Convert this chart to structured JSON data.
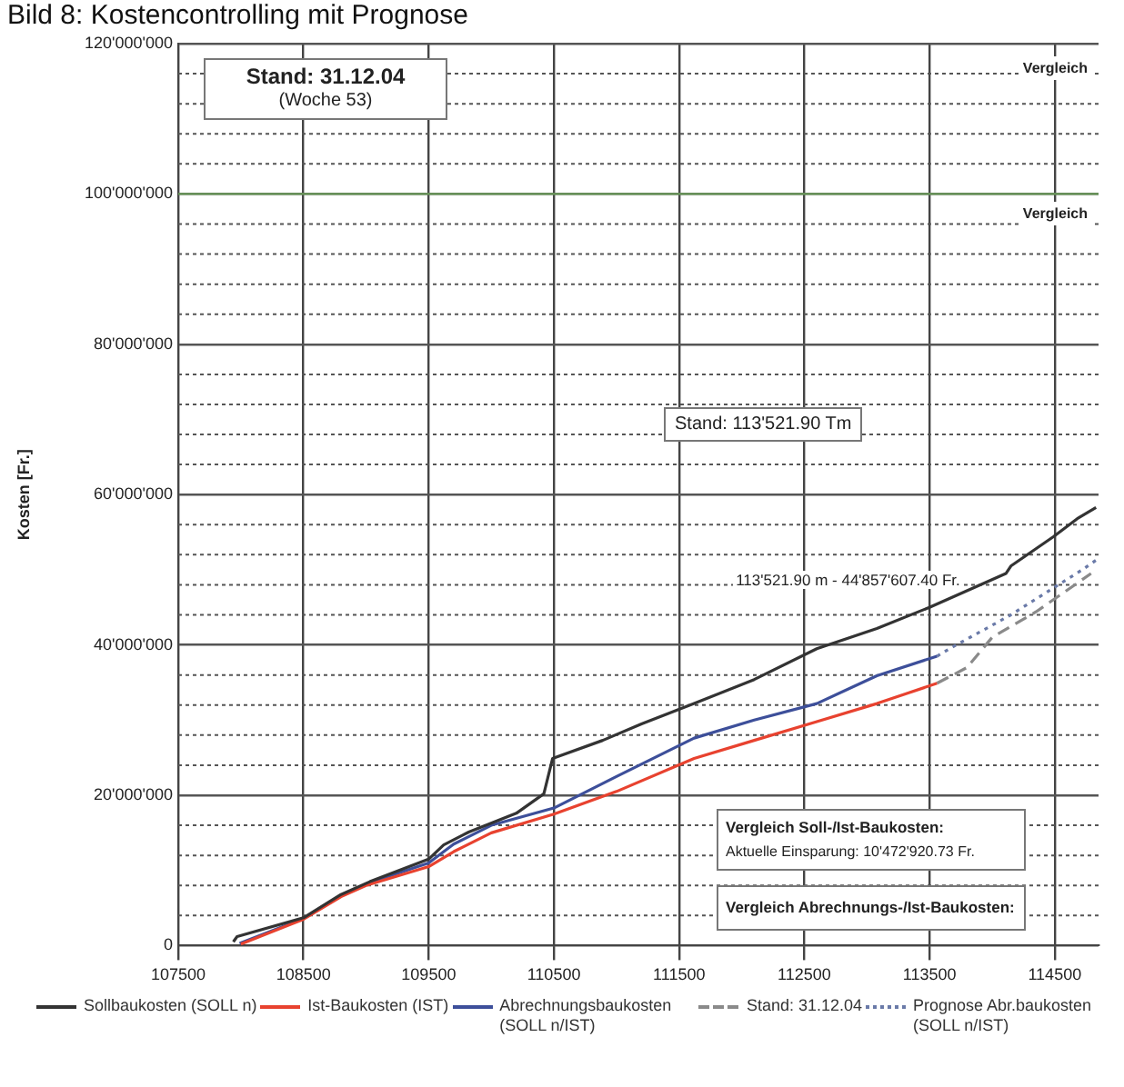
{
  "chart_data": {
    "type": "line",
    "title": "Bild 8: Kostencontrolling mit Prognose",
    "ylabel": "Kosten [Fr.]",
    "xlim": [
      107500,
      114850
    ],
    "xticks": [
      107500,
      108500,
      109500,
      110500,
      111500,
      112500,
      113500,
      114500
    ],
    "ylim": [
      0,
      120000000
    ],
    "yticks": [
      {
        "value": 0,
        "label": "0"
      },
      {
        "value": 4000000,
        "label": null
      },
      {
        "value": 8000000,
        "label": null
      },
      {
        "value": 12000000,
        "label": null
      },
      {
        "value": 16000000,
        "label": null
      },
      {
        "value": 20000000,
        "label": "20'000'000"
      },
      {
        "value": 24000000,
        "label": null
      },
      {
        "value": 28000000,
        "label": null
      },
      {
        "value": 32000000,
        "label": null
      },
      {
        "value": 36000000,
        "label": null
      },
      {
        "value": 40000000,
        "label": "40'000'000"
      },
      {
        "value": 44000000,
        "label": null
      },
      {
        "value": 48000000,
        "label": null
      },
      {
        "value": 52000000,
        "label": null
      },
      {
        "value": 56000000,
        "label": null
      },
      {
        "value": 60000000,
        "label": "60'000'000"
      },
      {
        "value": 64000000,
        "label": null
      },
      {
        "value": 68000000,
        "label": null
      },
      {
        "value": 72000000,
        "label": null
      },
      {
        "value": 76000000,
        "label": null
      },
      {
        "value": 80000000,
        "label": "80'000'000"
      },
      {
        "value": 84000000,
        "label": null
      },
      {
        "value": 88000000,
        "label": null
      },
      {
        "value": 92000000,
        "label": null
      },
      {
        "value": 96000000,
        "label": null
      },
      {
        "value": 100000000,
        "label": "100'000'000"
      },
      {
        "value": 104000000,
        "label": null
      },
      {
        "value": 108000000,
        "label": null
      },
      {
        "value": 112000000,
        "label": null
      },
      {
        "value": 116000000,
        "label": null
      },
      {
        "value": 120000000,
        "label": "120'000'000"
      }
    ],
    "grid": true,
    "legend": "bottom",
    "marker": "none",
    "series": [
      {
        "name": "Sollbaukosten (SOLL n)",
        "color": "#333333",
        "line_style": "solid",
        "x": [
          107940,
          107970,
          108500,
          108800,
          109030,
          109500,
          109620,
          109820,
          110200,
          110420,
          110490,
          110890,
          111200,
          111620,
          112100,
          112600,
          113080,
          113500,
          114110,
          114150,
          114490,
          114680,
          114830
        ],
        "values": [
          500000,
          1200000,
          3700000,
          6800000,
          8500000,
          11500000,
          13400000,
          15100000,
          17600000,
          20200000,
          24900000,
          27300000,
          29500000,
          32200000,
          35400000,
          39500000,
          42200000,
          45000000,
          49500000,
          50500000,
          54400000,
          56800000,
          58300000
        ]
      },
      {
        "name": "Ist-Baukosten (IST)",
        "color": "#e8422f",
        "line_style": "solid",
        "x": [
          108000,
          108500,
          108800,
          109000,
          109500,
          109700,
          110000,
          110500,
          111000,
          111620,
          112100,
          112600,
          113080,
          113560
        ],
        "values": [
          200000,
          3500000,
          6500000,
          8000000,
          10500000,
          12500000,
          15000000,
          17500000,
          20500000,
          24900000,
          27300000,
          29800000,
          32200000,
          34900000
        ]
      },
      {
        "name": "Abrechnungsbaukosten (SOLL n/IST)",
        "color": "#3d4f9a",
        "line_style": "solid",
        "x": [
          107990,
          108500,
          108800,
          109000,
          109500,
          109700,
          110000,
          110500,
          111000,
          111620,
          112100,
          112600,
          113080,
          113560
        ],
        "values": [
          300000,
          3600000,
          6600000,
          8200000,
          11000000,
          13500000,
          16000000,
          18300000,
          22500000,
          27600000,
          30000000,
          32200000,
          35900000,
          38500000
        ]
      },
      {
        "name": "Stand: 31.12.04",
        "color": "#8a8a8a",
        "line_style": "dashed",
        "x": [
          113560,
          113800,
          114000,
          114350,
          114790
        ],
        "values": [
          34900000,
          37000000,
          41000000,
          44400000,
          49500000
        ]
      },
      {
        "name": "Prognose Abr.baukosten (SOLL n/IST)",
        "color": "#6a7aa8",
        "line_style": "dotted",
        "x": [
          113560,
          113660,
          114140,
          114720,
          114850
        ],
        "values": [
          38500000,
          39500000,
          43900000,
          50000000,
          51500000
        ]
      }
    ],
    "ref_lines": [
      {
        "axis": "y",
        "value": 100000000,
        "color": "#6a9a5a"
      }
    ],
    "annotations": [
      "Stand: 31.12.04",
      "(Woche 53)",
      "Stand: 113'521.90 Tm",
      {
        "text": "113'521.90 m - 44'857'607.40 Fr.",
        "x": 113521.9,
        "y": 44857607.4
      },
      "Vergleich Soll-/Ist-Baukosten:",
      "Aktuelle Einsparung: 10'472'920.73 Fr.",
      "Vergleich Abrechnungs-/Ist-Baukosten:",
      "Vergleich",
      "Vergleich"
    ]
  }
}
